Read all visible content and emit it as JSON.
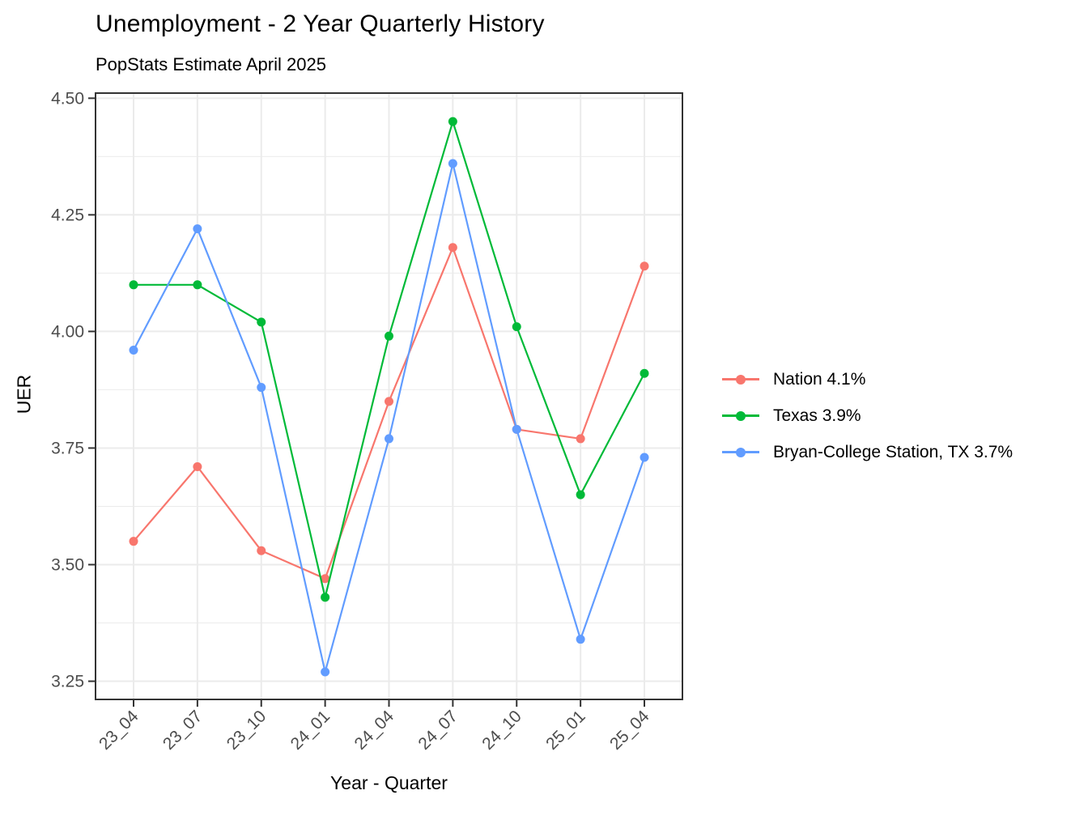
{
  "header": {
    "title": "Unemployment - 2 Year Quarterly History",
    "subtitle": "PopStats Estimate April 2025"
  },
  "chart_data": {
    "type": "line",
    "title": "Unemployment - 2 Year Quarterly History",
    "subtitle": "PopStats Estimate April 2025",
    "xlabel": "Year - Quarter",
    "ylabel": "UER",
    "categories": [
      "23_04",
      "23_07",
      "23_10",
      "24_01",
      "24_04",
      "24_07",
      "24_10",
      "25_01",
      "25_04"
    ],
    "series": [
      {
        "name": "nation",
        "label": "Nation 4.1%",
        "color": "#F8766D",
        "values": [
          3.55,
          3.71,
          3.53,
          3.47,
          3.85,
          4.18,
          3.79,
          3.77,
          4.14
        ]
      },
      {
        "name": "texas",
        "label": "Texas 3.9%",
        "color": "#00BA38",
        "values": [
          4.1,
          4.1,
          4.02,
          3.43,
          3.99,
          4.45,
          4.01,
          3.65,
          3.91
        ]
      },
      {
        "name": "bryan-college-station",
        "label": "Bryan-College Station, TX 3.7%",
        "color": "#619CFF",
        "values": [
          3.96,
          4.22,
          3.88,
          3.27,
          3.77,
          4.36,
          3.79,
          3.34,
          3.73
        ]
      }
    ],
    "yticks": [
      "3.25",
      "3.50",
      "3.75",
      "4.00",
      "4.25",
      "4.50"
    ],
    "ylim": [
      3.211,
      4.511
    ],
    "grid": "horizontal major+minor, vertical major only",
    "legend_position": "right",
    "colors": {
      "gridline": "#EBEBEB",
      "panel_border": "#333333",
      "tick": "#333333",
      "axis_text": "#4D4D4D",
      "text": "#000000"
    }
  }
}
